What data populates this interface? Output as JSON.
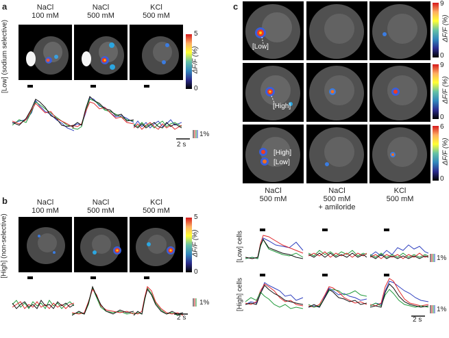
{
  "panels": {
    "a": {
      "label": "a",
      "columns": [
        {
          "line1": "NaCl",
          "line2": "100 mM"
        },
        {
          "line1": "NaCl",
          "line2": "500 mM"
        },
        {
          "line1": "KCl",
          "line2": "500 mM"
        }
      ],
      "row_label": "[Low] (sodium selective)",
      "colorbar": {
        "max": "5",
        "min": "0",
        "label": "ΔF/F (%)"
      },
      "scale_y": "1%",
      "scale_x": "2 s"
    },
    "b": {
      "label": "b",
      "columns": [
        {
          "line1": "NaCl",
          "line2": "100 mM"
        },
        {
          "line1": "NaCl",
          "line2": "500 mM"
        },
        {
          "line1": "KCl",
          "line2": "500 mM"
        }
      ],
      "row_label": "[High] (non-selective)",
      "colorbar": {
        "max": "5",
        "min": "0",
        "label": "ΔF/F (%)"
      },
      "scale_y": "1%",
      "scale_x": "2 s"
    },
    "c": {
      "label": "c",
      "rows": [
        {
          "annot": [
            "[Low]"
          ],
          "cbar_max": "9",
          "cbar_min": "0"
        },
        {
          "annot": [
            "[High]"
          ],
          "cbar_max": "9",
          "cbar_min": "0"
        },
        {
          "annot": [
            "[High]",
            "[Low]"
          ],
          "cbar_max": "6",
          "cbar_min": "0"
        }
      ],
      "cbar_label": "ΔF/F (%)",
      "columns": [
        {
          "line1": "NaCl",
          "line2": "500 mM",
          "line3": ""
        },
        {
          "line1": "NaCl",
          "line2": "500 mM",
          "line3": "+ amiloride"
        },
        {
          "line1": "KCl",
          "line2": "500 mM",
          "line3": ""
        }
      ],
      "trace_rows": [
        {
          "label": "[Low] cells",
          "scale_y": "1%"
        },
        {
          "label": "[High] cells",
          "scale_y": "1%"
        }
      ],
      "scale_x": "2 s"
    }
  },
  "colors": {
    "trace_black": "#111111",
    "trace_red": "#e0262a",
    "trace_green": "#1f9a3a",
    "trace_blue": "#2e3fbf"
  }
}
